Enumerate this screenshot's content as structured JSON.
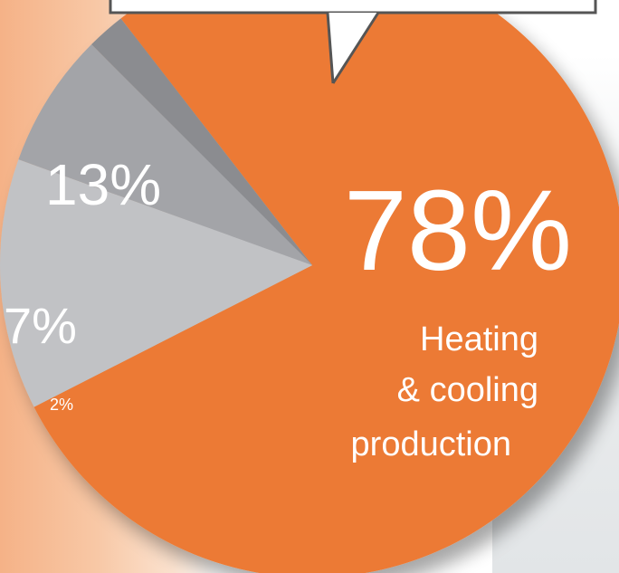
{
  "chart_data": {
    "type": "pie",
    "slices": [
      {
        "label": "78%",
        "value": 78,
        "color": "#ec7a34"
      },
      {
        "label": "13%",
        "value": 13,
        "color": "#c1c2c5"
      },
      {
        "label": "7%",
        "value": 7,
        "color": "#a3a4a8"
      },
      {
        "label": "2%",
        "value": 2,
        "color": "#8b8c90"
      }
    ],
    "annotation": {
      "lines": [
        "Heating",
        "& cooling",
        "production"
      ]
    }
  }
}
